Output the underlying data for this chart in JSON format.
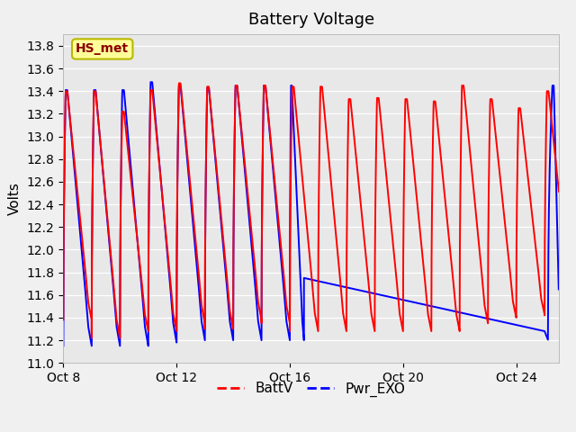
{
  "title": "Battery Voltage",
  "ylabel": "Volts",
  "ylim": [
    11.0,
    13.9
  ],
  "xlim_days": [
    0.0,
    17.5
  ],
  "x_tick_labels": [
    "Oct 8",
    "Oct 12",
    "Oct 16",
    "Oct 20",
    "Oct 24"
  ],
  "x_tick_positions": [
    0,
    4,
    8,
    12,
    16
  ],
  "legend_entries": [
    "BattV",
    "Pwr_EXO"
  ],
  "line_colors": [
    "red",
    "blue"
  ],
  "fig_bg_color": "#f0f0f0",
  "plot_bg_color": "#e8e8e8",
  "grid_color": "#ffffff",
  "annotation_text": "HS_met",
  "annotation_fg": "#8b0000",
  "annotation_bg": "#ffff99",
  "annotation_border": "#b8b800",
  "yticks": [
    11.0,
    11.2,
    11.4,
    11.6,
    11.8,
    12.0,
    12.2,
    12.4,
    12.6,
    12.8,
    13.0,
    13.2,
    13.4,
    13.6,
    13.8
  ],
  "title_fontsize": 13,
  "axis_label_fontsize": 11,
  "tick_fontsize": 10,
  "legend_fontsize": 11,
  "linewidth": 1.4,
  "num_cycles_red": 18,
  "num_cycles_blue_osc": 9,
  "blue_osc_end_day": 8.5,
  "blue_line_start_v": 11.75,
  "blue_line_end_v": 11.2,
  "red_peaks": [
    13.4,
    13.4,
    13.22,
    13.41,
    13.47,
    13.44,
    13.45,
    13.45,
    13.44,
    13.44,
    13.33,
    13.34,
    13.33,
    13.31,
    13.45,
    13.33,
    13.25,
    13.4
  ],
  "red_troughs": [
    11.38,
    11.22,
    11.28,
    11.28,
    11.35,
    11.3,
    11.38,
    11.35,
    11.28,
    11.28,
    11.28,
    11.28,
    11.28,
    11.28,
    11.35,
    11.4,
    11.43,
    11.42
  ],
  "blue_peaks": [
    13.41,
    13.41,
    13.41,
    13.48,
    13.45,
    13.43,
    13.45,
    13.45,
    13.45
  ],
  "blue_troughs": [
    11.15,
    11.15,
    11.15,
    11.18,
    11.2,
    11.2,
    11.2,
    11.2,
    11.2
  ]
}
